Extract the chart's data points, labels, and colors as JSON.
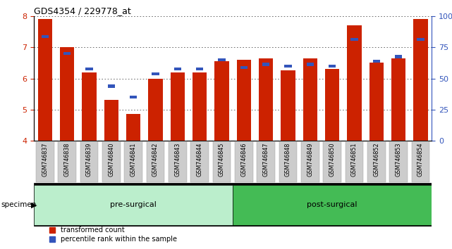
{
  "title": "GDS4354 / 229778_at",
  "samples": [
    "GSM746837",
    "GSM746838",
    "GSM746839",
    "GSM746840",
    "GSM746841",
    "GSM746842",
    "GSM746843",
    "GSM746844",
    "GSM746845",
    "GSM746846",
    "GSM746847",
    "GSM746848",
    "GSM746849",
    "GSM746850",
    "GSM746851",
    "GSM746852",
    "GSM746853",
    "GSM746854"
  ],
  "red_values": [
    7.9,
    7.0,
    6.2,
    5.3,
    4.85,
    6.0,
    6.2,
    6.2,
    6.55,
    6.6,
    6.65,
    6.25,
    6.65,
    6.3,
    7.7,
    6.5,
    6.65,
    7.9
  ],
  "blue_values": [
    7.3,
    6.75,
    6.25,
    5.7,
    5.35,
    6.1,
    6.25,
    6.25,
    6.55,
    6.3,
    6.4,
    6.35,
    6.4,
    6.35,
    7.2,
    6.5,
    6.65,
    7.2
  ],
  "ylim_left": [
    4,
    8
  ],
  "ylim_right": [
    0,
    100
  ],
  "yticks_left": [
    4,
    5,
    6,
    7,
    8
  ],
  "yticks_right": [
    0,
    25,
    50,
    75,
    100
  ],
  "group1_label": "pre-surgical",
  "group2_label": "post-surgical",
  "pre_count": 9,
  "post_count": 9,
  "legend_red": "transformed count",
  "legend_blue": "percentile rank within the sample",
  "bar_color": "#cc2200",
  "dot_color": "#3355bb",
  "bar_bottom": 4,
  "background_plot": "#ffffff",
  "tick_bg_color": "#cccccc",
  "group1_color": "#bbeecc",
  "group2_color": "#44bb55",
  "grid_color": "#555555",
  "border_color": "#000000"
}
